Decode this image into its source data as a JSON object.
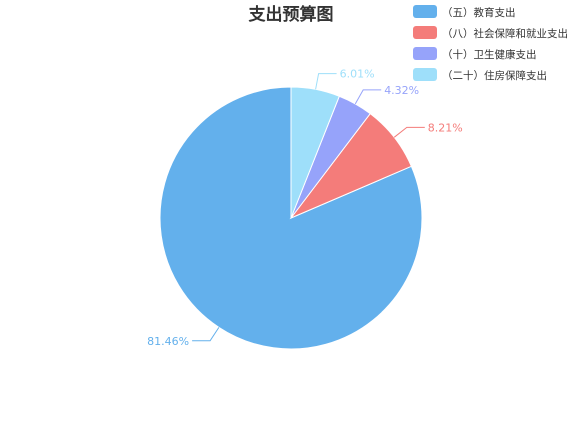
{
  "chart_data": {
    "type": "pie",
    "title": "支出预算图",
    "slices": [
      {
        "label": "（五）教育支出",
        "value": 81.46,
        "value_label": "81.46%",
        "color": "#63b0ec"
      },
      {
        "label": "（八）社会保障和就业支出",
        "value": 8.21,
        "value_label": "8.21%",
        "color": "#f47c7a"
      },
      {
        "label": "（十）卫生健康支出",
        "value": 4.32,
        "value_label": "4.32%",
        "color": "#96a3fa"
      },
      {
        "label": "（二十）住房保障支出",
        "value": 6.01,
        "value_label": "6.01%",
        "color": "#9edffa"
      }
    ],
    "start_position": "top",
    "direction": "counterclockwise",
    "legend_position": "top-right"
  }
}
